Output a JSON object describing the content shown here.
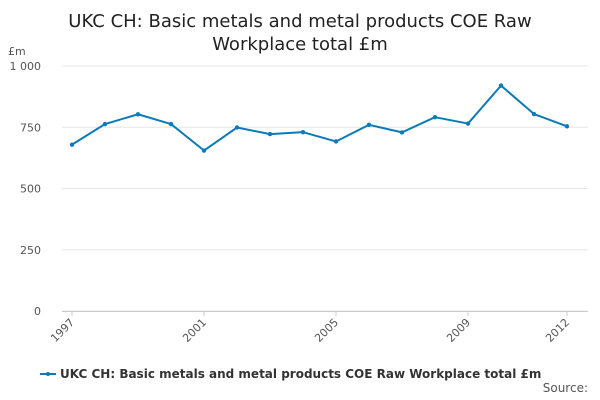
{
  "chart_data": {
    "type": "line",
    "title_line1": "UKC CH: Basic metals and metal products COE Raw",
    "title_line2": "Workplace total £m",
    "unit": "£m",
    "x": [
      1997,
      1998,
      1999,
      2000,
      2001,
      2002,
      2003,
      2004,
      2005,
      2006,
      2007,
      2008,
      2009,
      2010,
      2011,
      2012
    ],
    "x_tick_labels": [
      "1997",
      "2001",
      "2005",
      "2009",
      "2012"
    ],
    "y_tick_labels": [
      "0",
      "250",
      "500",
      "750",
      "1 000"
    ],
    "y_ticks": [
      0,
      250,
      500,
      750,
      1000
    ],
    "ylim": [
      0,
      1000
    ],
    "series": [
      {
        "name": "UKC CH: Basic metals and metal products COE Raw Workplace total £m",
        "values": [
          679,
          763,
          803,
          763,
          655,
          749,
          722,
          730,
          692,
          760,
          729,
          791,
          765,
          920,
          804,
          754
        ]
      }
    ],
    "grid": true,
    "legend_position": "bottom-left"
  },
  "colors": {
    "series": "#0d7ab8",
    "grid": "#e6e6e6",
    "axis": "#cccccc"
  },
  "footer": {
    "source_label": "Source:"
  }
}
